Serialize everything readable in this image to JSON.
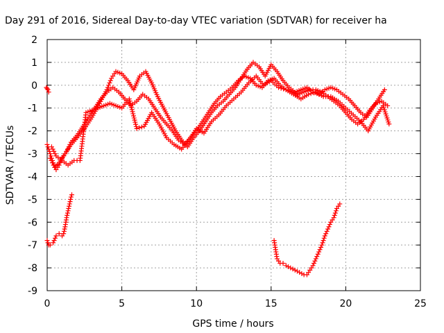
{
  "chart_data": {
    "type": "scatter",
    "title": "Day 291 of 2016, Sidereal Day-to-day VTEC variation (SDTVAR) for receiver ha",
    "xlabel": "GPS time / hours",
    "ylabel": "SDTVAR / TECUs",
    "xlim": [
      0,
      25
    ],
    "ylim": [
      -9,
      2
    ],
    "x_ticks": [
      "0",
      "5",
      "10",
      "15",
      "20",
      "25"
    ],
    "y_ticks": [
      "2",
      "1",
      "0",
      "-1",
      "-2",
      "-3",
      "-4",
      "-5",
      "-6",
      "-7",
      "-8",
      "-9"
    ],
    "grid": true,
    "marker": "+",
    "color": "#ff0000",
    "series": [
      {
        "x": [
          0.0,
          0.2,
          0.4,
          0.6,
          0.8,
          1.0,
          1.3,
          1.6,
          2.0,
          2.4,
          2.8,
          3.2,
          3.6,
          4.0,
          4.4,
          4.8,
          5.2,
          5.6,
          6.0,
          6.4,
          6.8,
          7.2,
          7.6,
          8.0,
          8.4,
          8.8,
          9.2,
          9.6,
          10.0,
          10.4,
          10.8,
          11.2,
          11.6,
          12.0,
          12.4,
          12.8,
          13.2,
          13.6,
          14.0,
          14.4,
          14.8,
          15.2,
          15.6,
          16.0,
          16.4,
          16.8,
          17.2,
          17.6,
          18.0,
          18.4,
          18.8,
          19.2,
          19.6,
          20.0,
          20.4,
          20.8,
          21.2,
          21.6,
          22.0,
          22.4,
          22.8
        ],
        "y": [
          -2.6,
          -3.0,
          -3.4,
          -3.7,
          -3.5,
          -3.2,
          -2.9,
          -2.5,
          -2.2,
          -1.8,
          -1.4,
          -1.0,
          -0.6,
          -0.3,
          -0.1,
          -0.3,
          -0.6,
          -0.9,
          -0.7,
          -0.4,
          -0.6,
          -1.0,
          -1.4,
          -1.7,
          -2.0,
          -2.4,
          -2.6,
          -2.3,
          -2.0,
          -1.6,
          -1.2,
          -0.8,
          -0.5,
          -0.3,
          -0.1,
          0.2,
          0.4,
          0.3,
          0.0,
          -0.1,
          0.2,
          0.3,
          0.0,
          -0.2,
          -0.3,
          -0.4,
          -0.3,
          -0.2,
          -0.2,
          -0.3,
          -0.5,
          -0.7,
          -0.9,
          -1.2,
          -1.5,
          -1.7,
          -1.5,
          -1.1,
          -0.8,
          -0.7,
          -0.9
        ]
      },
      {
        "x": [
          0.2,
          0.5,
          0.8,
          1.2,
          1.6,
          2.0,
          2.5,
          3.0,
          3.5,
          4.0,
          4.3,
          4.6,
          5.0,
          5.4,
          5.8,
          6.2,
          6.6,
          7.0,
          7.4,
          7.8,
          8.2,
          8.6,
          9.0,
          9.4,
          9.8,
          10.2,
          10.6,
          11.0,
          11.4,
          11.8,
          12.2,
          12.6,
          13.0,
          13.4,
          13.8,
          14.2,
          14.6,
          15.0,
          15.4,
          15.8,
          16.2,
          16.6,
          17.0,
          17.4,
          17.8,
          18.2,
          18.6,
          19.0,
          19.4,
          19.8,
          20.2,
          20.6,
          21.0,
          21.4,
          21.8,
          22.2,
          22.6
        ],
        "y": [
          -3.2,
          -3.6,
          -3.4,
          -3.0,
          -2.6,
          -2.3,
          -1.9,
          -1.4,
          -0.8,
          -0.2,
          0.3,
          0.6,
          0.5,
          0.2,
          -0.2,
          0.4,
          0.6,
          0.1,
          -0.5,
          -1.0,
          -1.5,
          -2.0,
          -2.4,
          -2.7,
          -2.3,
          -2.0,
          -1.6,
          -1.2,
          -0.9,
          -0.7,
          -0.4,
          -0.1,
          0.3,
          0.7,
          1.0,
          0.8,
          0.4,
          0.9,
          0.6,
          0.2,
          -0.1,
          -0.3,
          -0.2,
          -0.1,
          -0.3,
          -0.4,
          -0.2,
          -0.1,
          -0.2,
          -0.4,
          -0.6,
          -0.9,
          -1.2,
          -1.4,
          -1.0,
          -0.6,
          -0.2
        ]
      },
      {
        "x": [
          0.3,
          0.6,
          1.0,
          1.4,
          1.8,
          2.2,
          2.6,
          3.0,
          3.4,
          3.8,
          4.2,
          4.6,
          5.0,
          5.5,
          6.0,
          6.5,
          7.0,
          7.5,
          8.0,
          8.5,
          9.0,
          9.5,
          10.0,
          10.5,
          11.0,
          11.5,
          12.0,
          12.5,
          13.0,
          13.5,
          14.0,
          14.5,
          15.0,
          15.5,
          16.0,
          16.5,
          17.0,
          17.5,
          18.0,
          18.5,
          19.0,
          19.5,
          20.0,
          20.5,
          21.0,
          21.5,
          22.0,
          22.5,
          22.9
        ],
        "y": [
          -2.7,
          -3.1,
          -3.3,
          -3.5,
          -3.3,
          -3.3,
          -1.2,
          -1.1,
          -1.0,
          -0.9,
          -0.8,
          -0.9,
          -1.0,
          -0.6,
          -1.9,
          -1.8,
          -1.2,
          -1.7,
          -2.3,
          -2.6,
          -2.8,
          -2.4,
          -1.9,
          -2.1,
          -1.6,
          -1.3,
          -0.9,
          -0.6,
          -0.3,
          0.1,
          0.4,
          0.0,
          0.2,
          -0.1,
          -0.2,
          -0.4,
          -0.6,
          -0.4,
          -0.3,
          -0.5,
          -0.5,
          -0.7,
          -1.0,
          -1.3,
          -1.6,
          -2.0,
          -1.4,
          -0.9,
          -1.7
        ]
      },
      {
        "x": [
          0.0,
          0.1,
          0.2,
          0.4,
          0.6,
          0.8,
          1.0,
          1.1,
          1.2,
          1.3,
          1.4,
          1.5,
          1.6,
          1.65
        ],
        "y": [
          -6.8,
          -7.0,
          -7.0,
          -6.9,
          -6.6,
          -6.5,
          -6.6,
          -6.5,
          -6.2,
          -5.8,
          -5.5,
          -5.2,
          -4.9,
          -4.8
        ]
      },
      {
        "x": [
          -0.05,
          0.0,
          0.05,
          0.1
        ],
        "y": [
          -0.1,
          -0.15,
          -0.2,
          -0.3
        ]
      },
      {
        "x": [
          15.2,
          15.3,
          15.4,
          15.6,
          15.8,
          16.0,
          16.3,
          16.6,
          16.9,
          17.2,
          17.4,
          17.6,
          17.8,
          18.0,
          18.2,
          18.4,
          18.6,
          18.8,
          19.0,
          19.2,
          19.4,
          19.6
        ],
        "y": [
          -6.8,
          -7.2,
          -7.6,
          -7.8,
          -7.8,
          -7.9,
          -8.0,
          -8.1,
          -8.2,
          -8.3,
          -8.3,
          -8.1,
          -7.9,
          -7.6,
          -7.3,
          -7.0,
          -6.6,
          -6.3,
          -6.0,
          -5.8,
          -5.4,
          -5.2
        ]
      }
    ]
  }
}
